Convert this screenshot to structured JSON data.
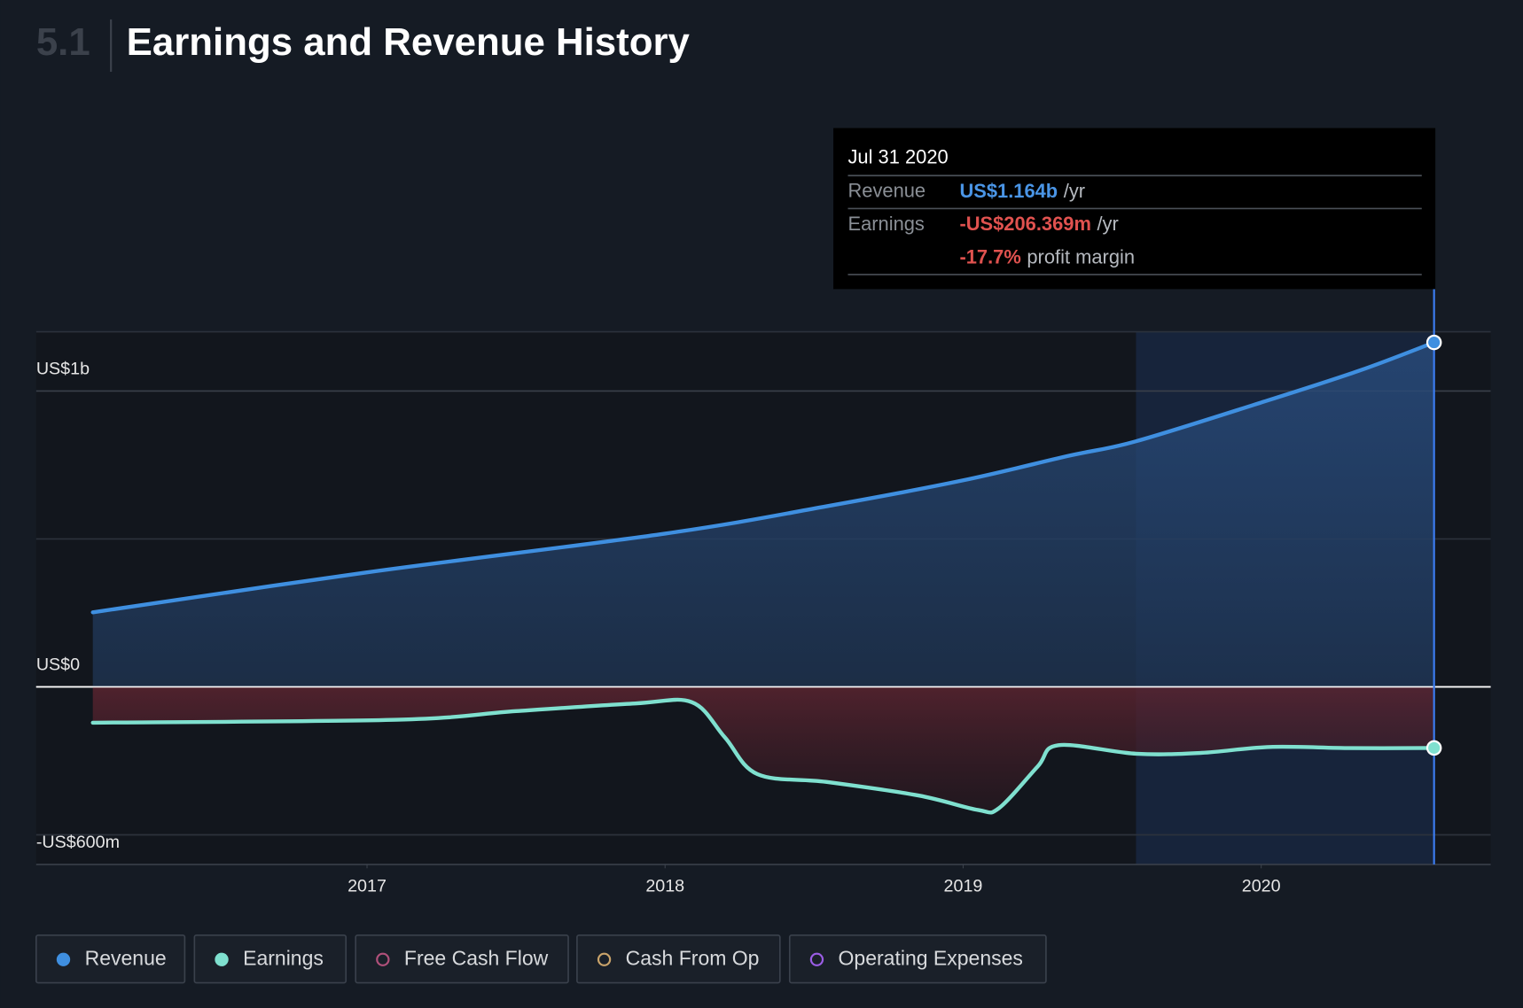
{
  "header": {
    "number": "5.1",
    "title": "Earnings and Revenue History"
  },
  "chart_data": {
    "type": "area",
    "xlim": [
      2015.89,
      2020.77
    ],
    "xticks": [
      2017,
      2018,
      2019,
      2020
    ],
    "ylim": [
      -600,
      1200
    ],
    "yticks": [
      {
        "value": 1000,
        "label": "US$1b"
      },
      {
        "value": 0,
        "label": "US$0"
      },
      {
        "value": -600,
        "label": "-US$600m"
      }
    ],
    "minor_yticks": [
      1200,
      500,
      -500
    ],
    "highlight_start": 2019.58,
    "x": [
      2016.08,
      2017.0,
      2018.0,
      2018.54,
      2019.0,
      2019.35,
      2019.58,
      2020.0,
      2020.33,
      2020.58
    ],
    "series": [
      {
        "name": "Revenue",
        "color": "#3f8fe0",
        "x": [
          2016.08,
          2017.0,
          2018.0,
          2018.54,
          2019.0,
          2019.35,
          2019.58,
          2020.0,
          2020.33,
          2020.58
        ],
        "values": [
          252,
          387,
          518,
          610,
          698,
          780,
          830,
          961,
          1069,
          1164
        ]
      },
      {
        "name": "Earnings",
        "color": "#7fe0cf",
        "x": [
          2016.08,
          2017.1,
          2017.5,
          2017.9,
          2018.09,
          2018.2,
          2018.31,
          2018.54,
          2018.85,
          2019.05,
          2019.12,
          2019.25,
          2019.32,
          2019.58,
          2019.8,
          2020.03,
          2020.3,
          2020.58
        ],
        "values": [
          -121,
          -111,
          -82,
          -56,
          -52,
          -170,
          -295,
          -321,
          -367,
          -416,
          -410,
          -269,
          -197,
          -226,
          -223,
          -203,
          -207,
          -206.369
        ]
      }
    ],
    "tooltip": {
      "date": "Jul 31 2020",
      "rows": [
        {
          "label": "Revenue",
          "value": "US$1.164b",
          "unit": "/yr",
          "color": "#4a95e6"
        },
        {
          "label": "Earnings",
          "value": "-US$206.369m",
          "unit": "/yr",
          "color": "#e0524f"
        }
      ],
      "margin": "-17.7%",
      "margin_label": "profit margin"
    },
    "legend": [
      {
        "name": "Revenue",
        "color": "#3f8fe0",
        "active": true
      },
      {
        "name": "Earnings",
        "color": "#7fe0cf",
        "active": true
      },
      {
        "name": "Free Cash Flow",
        "color": "#b0507a",
        "active": false
      },
      {
        "name": "Cash From Op",
        "color": "#c9a36a",
        "active": false
      },
      {
        "name": "Operating Expenses",
        "color": "#9b5de5",
        "active": false
      }
    ]
  }
}
